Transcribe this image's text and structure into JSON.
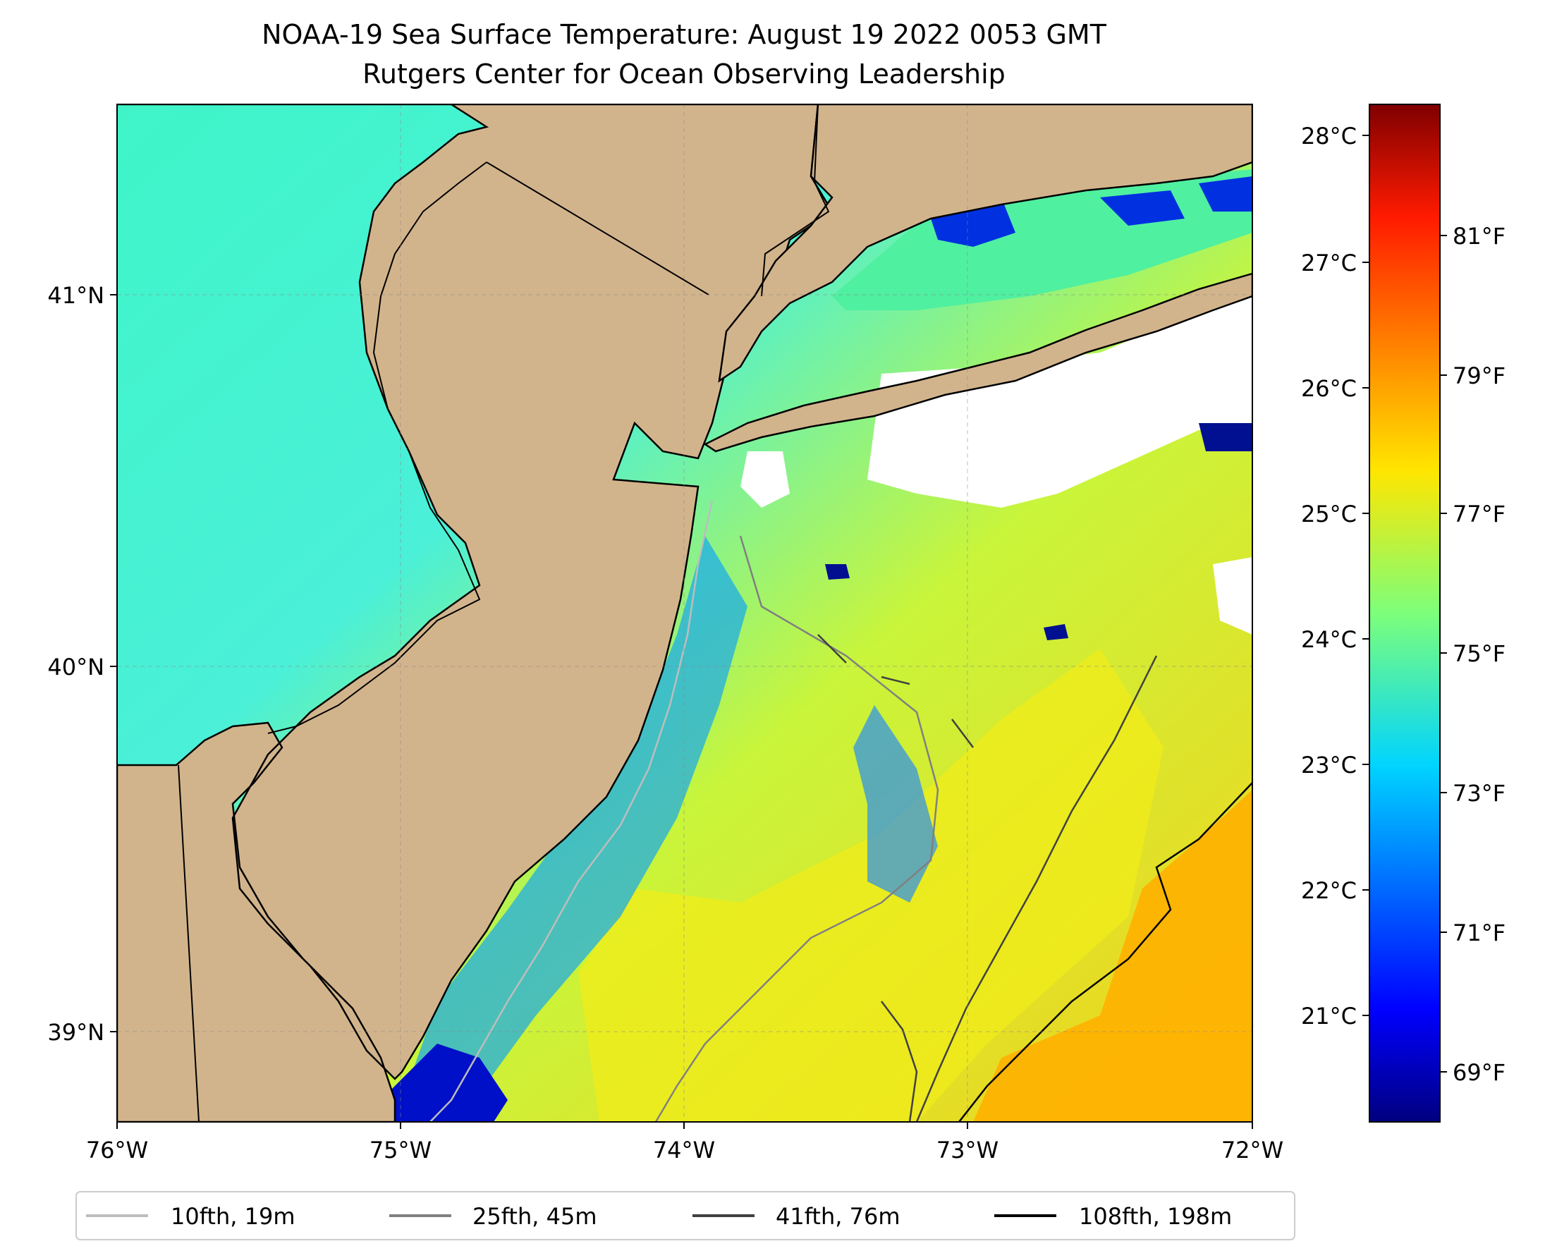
{
  "title": {
    "line1": "NOAA-19 Sea Surface Temperature: August 19 2022 0053 GMT",
    "line2": "Rutgers Center for Ocean Observing Leadership"
  },
  "map": {
    "lon_range": [
      -76,
      -72
    ],
    "lat_range": [
      38.74,
      41.53
    ],
    "x_ticks": [
      "76°W",
      "75°W",
      "74°W",
      "73°W",
      "72°W"
    ],
    "y_ticks": [
      "41°N",
      "40°N",
      "39°N"
    ],
    "gridlines": true,
    "land_color": "#d2b48c"
  },
  "colorbar": {
    "colormap": "jet",
    "celsius_ticks": [
      "28°C",
      "27°C",
      "26°C",
      "25°C",
      "24°C",
      "23°C",
      "22°C",
      "21°C"
    ],
    "fahrenheit_ticks": [
      "81°F",
      "79°F",
      "77°F",
      "75°F",
      "73°F",
      "71°F",
      "69°F"
    ]
  },
  "legend": {
    "placement": "bottom",
    "items": [
      {
        "label": "10fth, 19m",
        "color": "#bdbdbd"
      },
      {
        "label": "25fth, 45m",
        "color": "#808080"
      },
      {
        "label": "41fth, 76m",
        "color": "#404040"
      },
      {
        "label": "108fth, 198m",
        "color": "#000000"
      }
    ]
  }
}
